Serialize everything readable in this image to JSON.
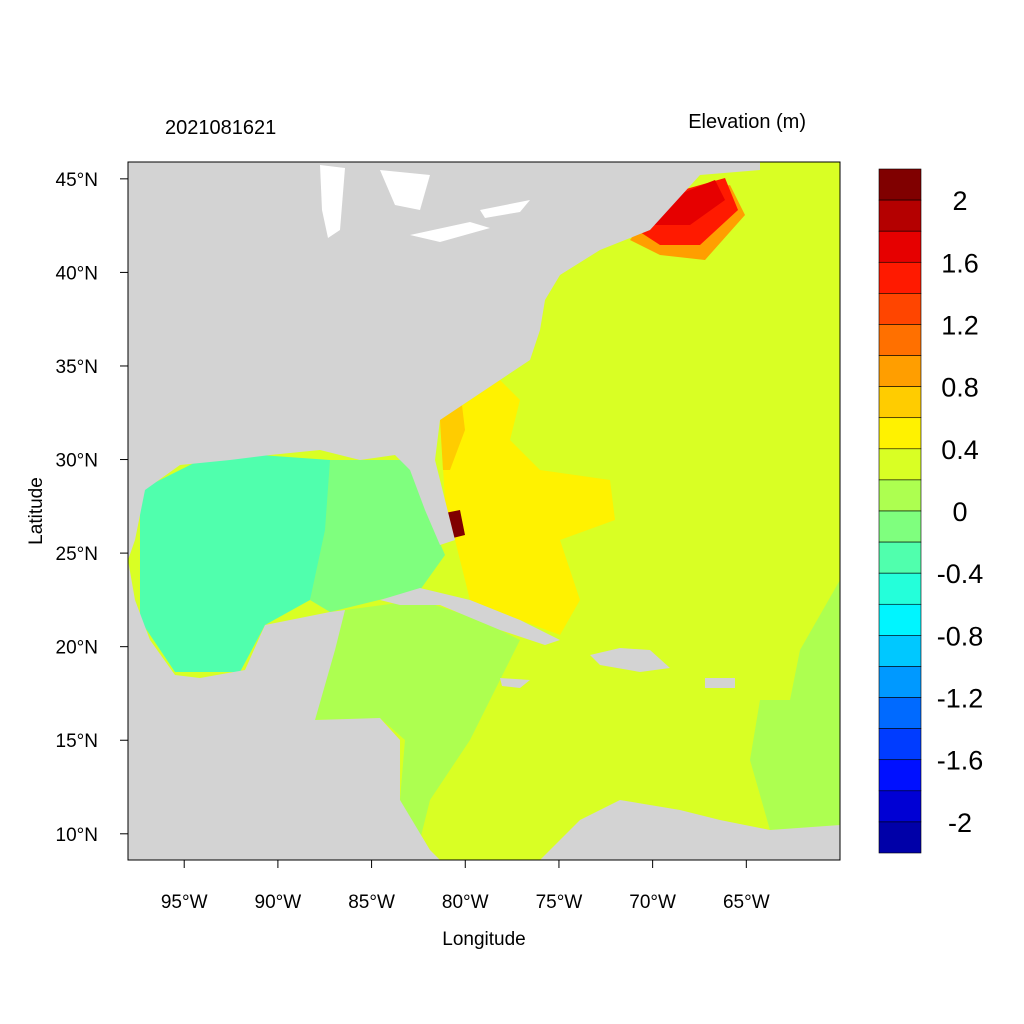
{
  "chart_data": {
    "type": "heatmap",
    "title_left": "2021081621",
    "title_right": "Elevation (m)",
    "xlabel": "Longitude",
    "ylabel": "Latitude",
    "xlim": [
      -98.0,
      -60.0
    ],
    "ylim": [
      8.6,
      45.9
    ],
    "xticks": [
      {
        "value": -95,
        "label": "95°W"
      },
      {
        "value": -90,
        "label": "90°W"
      },
      {
        "value": -85,
        "label": "85°W"
      },
      {
        "value": -80,
        "label": "80°W"
      },
      {
        "value": -75,
        "label": "75°W"
      },
      {
        "value": -70,
        "label": "70°W"
      },
      {
        "value": -65,
        "label": "65°W"
      }
    ],
    "yticks": [
      {
        "value": 45,
        "label": "45°N"
      },
      {
        "value": 40,
        "label": "40°N"
      },
      {
        "value": 35,
        "label": "35°N"
      },
      {
        "value": 30,
        "label": "30°N"
      },
      {
        "value": 25,
        "label": "25°N"
      },
      {
        "value": 20,
        "label": "20°N"
      },
      {
        "value": 15,
        "label": "15°N"
      },
      {
        "value": 10,
        "label": "10°N"
      }
    ],
    "colorbar": {
      "labels": [
        "2",
        "1.6",
        "1.2",
        "0.8",
        "0.4",
        "0",
        "-0.4",
        "-0.8",
        "-1.2",
        "-1.6",
        "-2"
      ],
      "colors": [
        "#800000",
        "#b40000",
        "#e60000",
        "#ff1a00",
        "#ff4500",
        "#ff7000",
        "#ff9e00",
        "#ffcc00",
        "#fff200",
        "#d9ff24",
        "#adff50",
        "#7fff7e",
        "#50ffad",
        "#24ffda",
        "#00f5ff",
        "#00c8ff",
        "#0099ff",
        "#006aff",
        "#003cff",
        "#0010ff",
        "#0000d4",
        "#0000a8"
      ]
    },
    "land_color": "#d3d3d3"
  }
}
